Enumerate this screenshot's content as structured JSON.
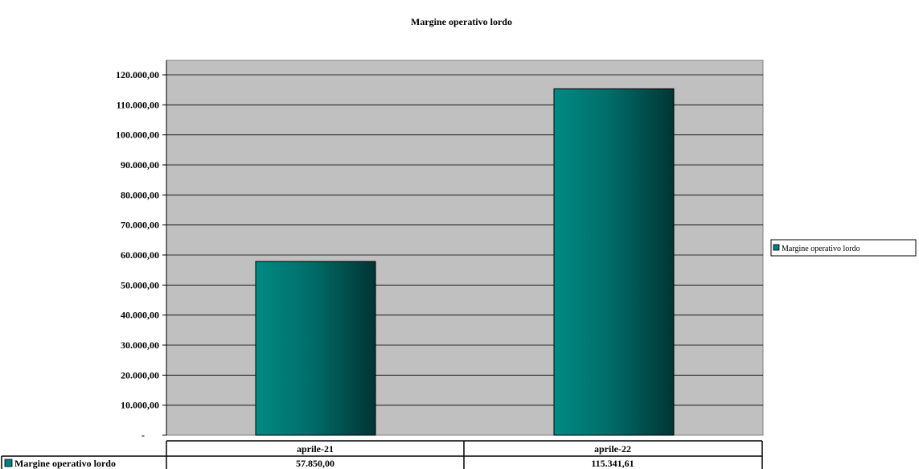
{
  "chart_data": {
    "type": "bar",
    "title": "Margine operativo lordo",
    "categories": [
      "aprile-21",
      "aprile-22"
    ],
    "series": [
      {
        "name": "Margine operativo lordo",
        "values": [
          57850.0,
          115341.61
        ],
        "value_labels": [
          "57.850,00",
          "115.341,61"
        ],
        "color": "#008080"
      }
    ],
    "ylim": [
      0,
      120000
    ],
    "yticks": [
      0,
      10000,
      20000,
      30000,
      40000,
      50000,
      60000,
      70000,
      80000,
      90000,
      100000,
      110000,
      120000
    ],
    "ytick_labels": [
      "-",
      "10.000,00",
      "20.000,00",
      "30.000,00",
      "40.000,00",
      "50.000,00",
      "60.000,00",
      "70.000,00",
      "80.000,00",
      "90.000,00",
      "100.000,00",
      "110.000,00",
      "120.000,00"
    ],
    "xlabel": "",
    "ylabel": "",
    "grid": true,
    "legend": {
      "position": "right",
      "entries": [
        "Margine operativo lordo"
      ]
    },
    "data_table": true,
    "colors": {
      "plot_background": "#c0c0c0",
      "bar": "#008080",
      "bar_dark": "#003333"
    }
  }
}
